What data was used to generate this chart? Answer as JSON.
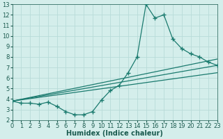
{
  "main_line": {
    "x": [
      0,
      1,
      2,
      3,
      4,
      5,
      6,
      7,
      8,
      9,
      10,
      11,
      12,
      13,
      14,
      15,
      16,
      17,
      18,
      19,
      20,
      21,
      22,
      23
    ],
    "y": [
      3.8,
      3.6,
      3.6,
      3.5,
      3.7,
      3.3,
      2.8,
      2.5,
      2.5,
      2.8,
      3.9,
      4.8,
      5.3,
      6.5,
      8.0,
      13.0,
      11.7,
      12.0,
      9.7,
      8.8,
      8.3,
      8.0,
      7.5,
      7.2
    ],
    "color": "#1a7a6e",
    "marker": "+",
    "linewidth": 0.9,
    "markersize": 4
  },
  "straight_lines": [
    {
      "x": [
        0,
        23
      ],
      "y": [
        3.8,
        7.2
      ]
    },
    {
      "x": [
        0,
        23
      ],
      "y": [
        3.8,
        6.5
      ]
    },
    {
      "x": [
        0,
        23
      ],
      "y": [
        3.8,
        7.8
      ]
    }
  ],
  "straight_color": "#1a7a6e",
  "straight_linewidth": 0.9,
  "xlim": [
    0,
    23
  ],
  "ylim": [
    2,
    13
  ],
  "yticks": [
    2,
    3,
    4,
    5,
    6,
    7,
    8,
    9,
    10,
    11,
    12,
    13
  ],
  "xticks": [
    0,
    1,
    2,
    3,
    4,
    5,
    6,
    7,
    8,
    9,
    10,
    11,
    12,
    13,
    14,
    15,
    16,
    17,
    18,
    19,
    20,
    21,
    22,
    23
  ],
  "xlabel": "Humidex (Indice chaleur)",
  "background_color": "#d4eeeb",
  "grid_color": "#b8dbd8",
  "line_color": "#1a7a6e",
  "font_color": "#1a5a4e",
  "xlabel_fontsize": 7,
  "tick_fontsize": 6
}
